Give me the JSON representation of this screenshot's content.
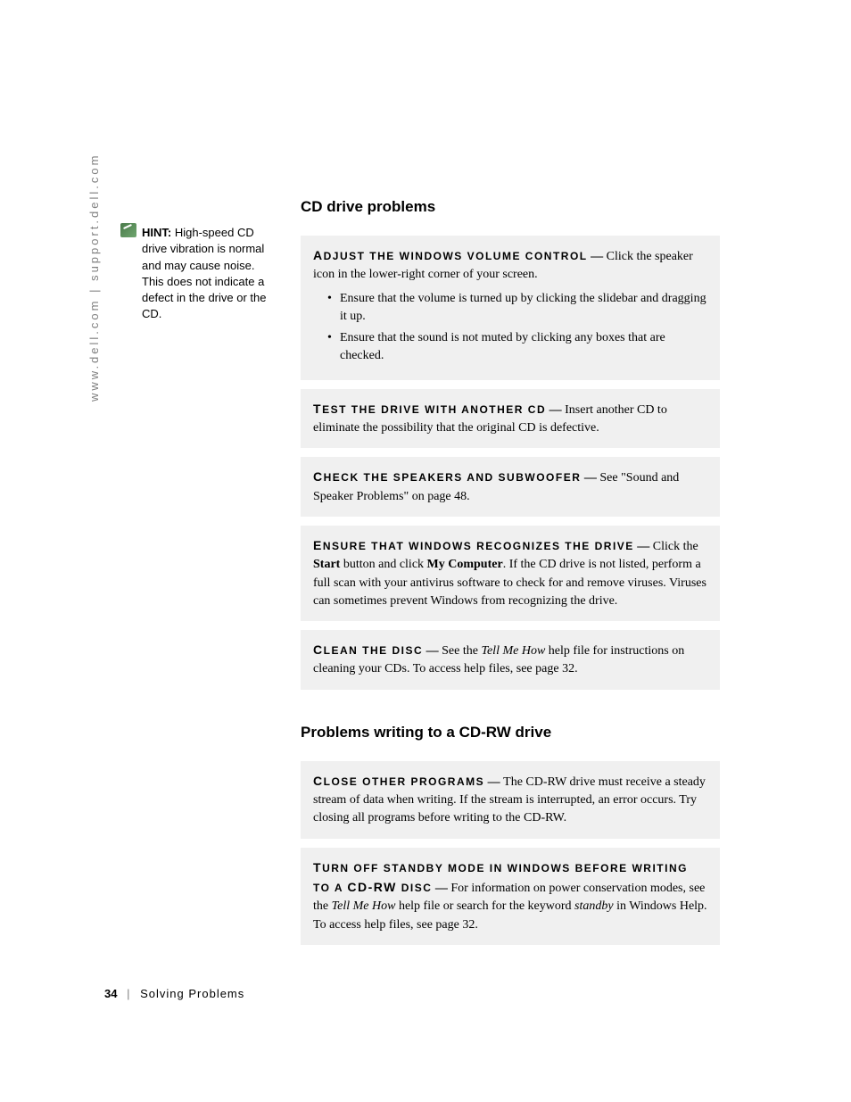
{
  "sidebar": {
    "url_text": "www.dell.com | support.dell.com"
  },
  "hint": {
    "label": "HINT:",
    "text": "High-speed CD drive vibration is normal and may cause noise. This does not indicate a defect in the drive or the CD."
  },
  "section1": {
    "heading": "CD drive problems",
    "box1": {
      "title_first": "A",
      "title_rest": "DJUST THE WINDOWS VOLUME CONTROL",
      "dash": " — ",
      "body": "Click the speaker icon in the lower-right corner of your screen.",
      "bullet1": "Ensure that the volume is turned up by clicking the slidebar and dragging it up.",
      "bullet2": "Ensure that the sound is not muted by clicking any boxes that are checked."
    },
    "box2": {
      "title_first": "T",
      "title_rest": "EST THE DRIVE WITH ANOTHER CD",
      "dash": " — ",
      "body": "Insert another CD to eliminate the possibility that the original CD is defective."
    },
    "box3": {
      "title_first": "C",
      "title_rest": "HECK THE SPEAKERS AND SUBWOOFER",
      "dash": " — ",
      "body": "See \"Sound and Speaker Problems\" on page 48."
    },
    "box4": {
      "title_first": "E",
      "title_rest": "NSURE THAT WINDOWS RECOGNIZES THE DRIVE",
      "dash": " — ",
      "body_pre": "Click the ",
      "bold1": "Start",
      "body_mid": " button and click ",
      "bold2": "My Computer",
      "body_post": ". If the CD drive is not listed, perform a full scan with your antivirus software to check for and remove viruses. Viruses can sometimes prevent Windows from recognizing the drive."
    },
    "box5": {
      "title_first": "C",
      "title_rest": "LEAN THE DISC",
      "dash": " — ",
      "body_pre": "See the ",
      "italic1": "Tell Me How",
      "body_post": " help file for instructions on cleaning your CDs. To access help files, see page 32."
    }
  },
  "section2": {
    "heading": "Problems writing to a CD-RW drive",
    "box1": {
      "title_first": "C",
      "title_rest": "LOSE OTHER PROGRAMS",
      "dash": " — ",
      "body": "The CD-RW drive must receive a steady stream of data when writing. If the stream is interrupted, an error occurs. Try closing all programs before writing to the CD-RW."
    },
    "box2": {
      "title_first": "T",
      "title_rest1": "URN OFF STANDBY MODE IN WINDOWS BEFORE WRITING TO A ",
      "title_big2": "CD-RW",
      "title_rest2": " DISC",
      "dash": " — ",
      "body_pre": "For information on power conservation modes, see the ",
      "italic1": "Tell Me How",
      "body_mid": " help file or search for the keyword ",
      "italic2": "standby",
      "body_post": " in Windows Help. To access help files, see page 32."
    }
  },
  "footer": {
    "page": "34",
    "divider": "|",
    "chapter": "Solving Problems"
  }
}
